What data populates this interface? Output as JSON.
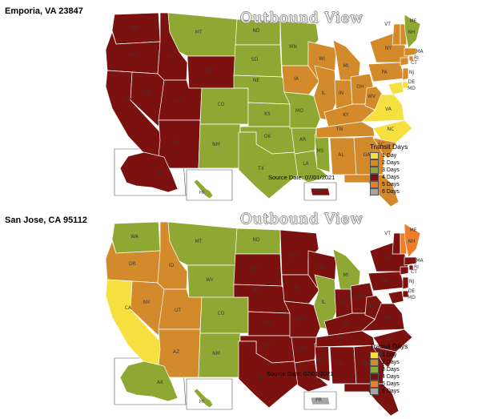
{
  "panels": [
    {
      "origin": "Emporia, VA 23847",
      "title": "Outbound View",
      "source_date": "Source Date: 07/01/2021",
      "state_days": {
        "WA": 4,
        "OR": 4,
        "CA": 4,
        "NV": 4,
        "ID": 4,
        "MT": 3,
        "WY": 4,
        "UT": 4,
        "AZ": 4,
        "CO": 3,
        "NM": 3,
        "ND": 3,
        "SD": 3,
        "NE": 3,
        "KS": 3,
        "OK": 3,
        "TX": 3,
        "MN": 3,
        "IA": 2,
        "MO": 3,
        "AR": 3,
        "LA": 3,
        "WI": 2,
        "IL": 2,
        "MS": 3,
        "MI": 2,
        "IN": 2,
        "KY": 2,
        "TN": 2,
        "AL": 2,
        "GA": 2,
        "OH": 2,
        "WV": 2,
        "VA": 1,
        "NC": 1,
        "SC": 2,
        "FL": 2,
        "PA": 2,
        "NY": 2,
        "VT": 2,
        "NH": 2,
        "ME": 3,
        "MA": 2,
        "CT": 2,
        "RI": 2,
        "NJ": 2,
        "DE": 1,
        "MD": 1,
        "AK": 4,
        "HI": 3,
        "PR": 4
      },
      "labels": [
        "WA",
        "OR",
        "CA",
        "NV",
        "ID",
        "MT",
        "WY",
        "UT",
        "AZ",
        "CO",
        "NM",
        "ND",
        "SD",
        "NE",
        "KS",
        "OK",
        "TX",
        "MN",
        "IA",
        "MO",
        "AR",
        "LA",
        "WI",
        "IL",
        "MS",
        "MI",
        "IN",
        "OH",
        "KY",
        "TN",
        "AL",
        "GA",
        "WV",
        "VA",
        "NC",
        "SC",
        "FL",
        "PA",
        "NY",
        "VT",
        "NH",
        "ME",
        "MA",
        "CT",
        "RI",
        "NJ",
        "DE",
        "MD",
        "AK",
        "HI",
        "PR"
      ]
    },
    {
      "origin": "San Jose, CA 95112",
      "title": "Outbound View",
      "source_date": "Source Date: 07/01/2021",
      "state_days": {
        "WA": 3,
        "OR": 2,
        "CA": 1,
        "NV": 2,
        "ID": 2,
        "MT": 3,
        "WY": 3,
        "UT": 2,
        "AZ": 2,
        "CO": 3,
        "NM": 3,
        "ND": 3,
        "SD": 4,
        "NE": 4,
        "KS": 4,
        "OK": 4,
        "TX": 4,
        "MN": 4,
        "IA": 4,
        "MO": 4,
        "AR": 4,
        "LA": 4,
        "WI": 4,
        "IL": 3,
        "MS": 4,
        "MI": 3,
        "IN": 4,
        "KY": 4,
        "TN": 4,
        "AL": 4,
        "GA": 4,
        "OH": 4,
        "WV": 4,
        "VA": 4,
        "NC": 4,
        "SC": 4,
        "FL": 4,
        "PA": 4,
        "NY": 4,
        "VT": 4,
        "NH": 5,
        "ME": 5,
        "MA": 4,
        "CT": 4,
        "RI": 4,
        "NJ": 4,
        "DE": 4,
        "MD": 4,
        "AK": 3,
        "HI": 3,
        "PR": 6
      },
      "labels": [
        "WA",
        "OR",
        "CA",
        "NV",
        "ID",
        "MT",
        "WY",
        "UT",
        "AZ",
        "CO",
        "NM",
        "ND",
        "SD",
        "NE",
        "KS",
        "OK",
        "TX",
        "MN",
        "IA",
        "MO",
        "AR",
        "LA",
        "WI",
        "IL",
        "MS",
        "MI",
        "IN",
        "OH",
        "KY",
        "TN",
        "AL",
        "GA",
        "WV",
        "VA",
        "NC",
        "SC",
        "FL",
        "PA",
        "NY",
        "VT",
        "NH",
        "ME",
        "MA",
        "CT",
        "RI",
        "NJ",
        "DE",
        "MD",
        "AK",
        "HI",
        "PR"
      ]
    }
  ],
  "legend": {
    "title": "Transit Days",
    "items": [
      {
        "label": "1 Day",
        "color": "#f6e03f"
      },
      {
        "label": "2 Days",
        "color": "#d38a2a"
      },
      {
        "label": "3 Days",
        "color": "#8fa833"
      },
      {
        "label": "4 Days",
        "color": "#7b1210"
      },
      {
        "label": "5 Days",
        "color": "#ee7d2a"
      },
      {
        "label": "6 Days",
        "color": "#a5a5a5"
      }
    ]
  }
}
